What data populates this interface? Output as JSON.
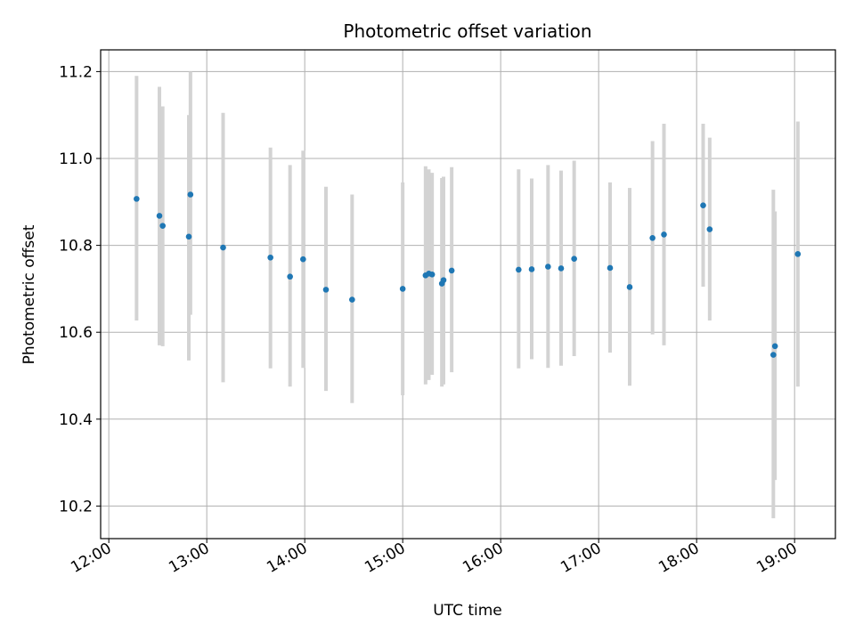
{
  "chart_data": {
    "type": "scatter",
    "title": "Photometric offset variation",
    "xlabel": "UTC time",
    "ylabel": "Photometric offset",
    "xlim": [
      "11:55",
      "19:25"
    ],
    "ylim": [
      10.125,
      11.25
    ],
    "x_ticks": [
      "12:00",
      "13:00",
      "14:00",
      "15:00",
      "16:00",
      "17:00",
      "18:00",
      "19:00"
    ],
    "y_ticks": [
      "10.2",
      "10.4",
      "10.6",
      "10.8",
      "11.0",
      "11.2"
    ],
    "grid": true,
    "marker_color": "#1f77b4",
    "errorbar_color": "#d3d3d3",
    "series": [
      {
        "points": [
          {
            "x": "12:17",
            "y": 10.907,
            "ylow": 10.627,
            "yhigh": 11.19
          },
          {
            "x": "12:31",
            "y": 10.868,
            "ylow": 10.57,
            "yhigh": 11.165
          },
          {
            "x": "12:33",
            "y": 10.845,
            "ylow": 10.568,
            "yhigh": 11.12
          },
          {
            "x": "12:49",
            "y": 10.82,
            "ylow": 10.535,
            "yhigh": 11.1
          },
          {
            "x": "12:50",
            "y": 10.917,
            "ylow": 10.64,
            "yhigh": 11.2
          },
          {
            "x": "13:10",
            "y": 10.795,
            "ylow": 10.485,
            "yhigh": 11.105
          },
          {
            "x": "13:39",
            "y": 10.772,
            "ylow": 10.517,
            "yhigh": 11.025
          },
          {
            "x": "13:51",
            "y": 10.728,
            "ylow": 10.475,
            "yhigh": 10.985
          },
          {
            "x": "13:59",
            "y": 10.768,
            "ylow": 10.518,
            "yhigh": 11.018
          },
          {
            "x": "14:13",
            "y": 10.698,
            "ylow": 10.465,
            "yhigh": 10.935
          },
          {
            "x": "14:29",
            "y": 10.675,
            "ylow": 10.437,
            "yhigh": 10.917
          },
          {
            "x": "15:00",
            "y": 10.7,
            "ylow": 10.455,
            "yhigh": 10.945
          },
          {
            "x": "15:14",
            "y": 10.731,
            "ylow": 10.48,
            "yhigh": 10.982
          },
          {
            "x": "15:16",
            "y": 10.735,
            "ylow": 10.49,
            "yhigh": 10.975
          },
          {
            "x": "15:18",
            "y": 10.733,
            "ylow": 10.502,
            "yhigh": 10.967
          },
          {
            "x": "15:24",
            "y": 10.712,
            "ylow": 10.475,
            "yhigh": 10.955
          },
          {
            "x": "15:25",
            "y": 10.72,
            "ylow": 10.48,
            "yhigh": 10.958
          },
          {
            "x": "15:30",
            "y": 10.742,
            "ylow": 10.508,
            "yhigh": 10.98
          },
          {
            "x": "16:11",
            "y": 10.744,
            "ylow": 10.517,
            "yhigh": 10.975
          },
          {
            "x": "16:19",
            "y": 10.745,
            "ylow": 10.538,
            "yhigh": 10.954
          },
          {
            "x": "16:29",
            "y": 10.751,
            "ylow": 10.518,
            "yhigh": 10.985
          },
          {
            "x": "16:37",
            "y": 10.747,
            "ylow": 10.523,
            "yhigh": 10.972
          },
          {
            "x": "16:45",
            "y": 10.769,
            "ylow": 10.545,
            "yhigh": 10.995
          },
          {
            "x": "17:07",
            "y": 10.748,
            "ylow": 10.553,
            "yhigh": 10.945
          },
          {
            "x": "17:19",
            "y": 10.704,
            "ylow": 10.477,
            "yhigh": 10.932
          },
          {
            "x": "17:33",
            "y": 10.817,
            "ylow": 10.595,
            "yhigh": 11.04
          },
          {
            "x": "17:40",
            "y": 10.825,
            "ylow": 10.57,
            "yhigh": 11.08
          },
          {
            "x": "18:04",
            "y": 10.892,
            "ylow": 10.705,
            "yhigh": 11.08
          },
          {
            "x": "18:08",
            "y": 10.837,
            "ylow": 10.627,
            "yhigh": 11.048
          },
          {
            "x": "18:47",
            "y": 10.548,
            "ylow": 10.172,
            "yhigh": 10.928
          },
          {
            "x": "18:48",
            "y": 10.568,
            "ylow": 10.26,
            "yhigh": 10.878
          },
          {
            "x": "19:02",
            "y": 10.78,
            "ylow": 10.475,
            "yhigh": 11.085
          }
        ]
      }
    ]
  }
}
